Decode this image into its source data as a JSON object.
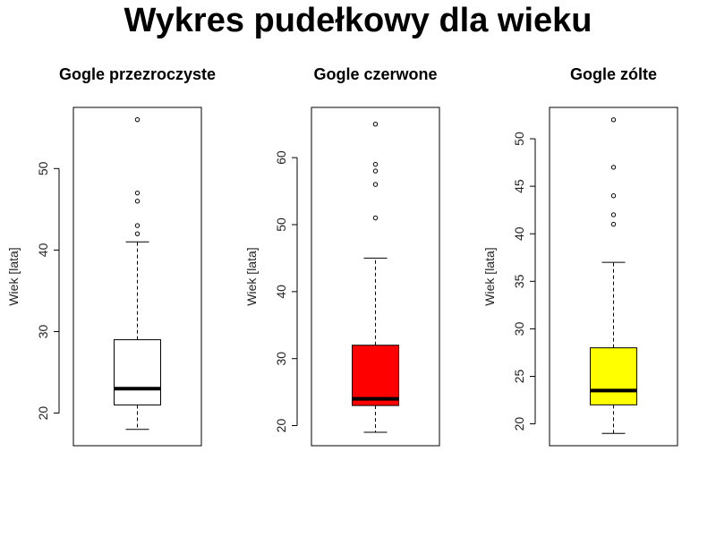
{
  "title": "Wykres pudełkowy dla wieku",
  "chart_data": [
    {
      "type": "boxplot",
      "title": "Gogle przezroczyste",
      "ylabel": "Wiek [lata]",
      "ylim": [
        16.0,
        57.5
      ],
      "yticks": [
        20,
        30,
        40,
        50
      ],
      "fill": "#ffffff",
      "stats": {
        "min": 18,
        "q1": 21,
        "median": 23,
        "q3": 29,
        "max": 41
      },
      "outliers": [
        42,
        43,
        46,
        47,
        56
      ]
    },
    {
      "type": "boxplot",
      "title": "Gogle czerwone",
      "ylabel": "Wiek [lata]",
      "ylim": [
        17.0,
        67.5
      ],
      "yticks": [
        20,
        30,
        40,
        50,
        60
      ],
      "fill": "#ff0000",
      "stats": {
        "min": 19,
        "q1": 23,
        "median": 24,
        "q3": 32,
        "max": 45
      },
      "outliers": [
        51,
        56,
        58,
        59,
        65
      ]
    },
    {
      "type": "boxplot",
      "title": "Gogle zólte",
      "ylabel": "Wiek [lata]",
      "ylim": [
        17.7,
        53.3
      ],
      "yticks": [
        20,
        25,
        30,
        35,
        40,
        45,
        50
      ],
      "fill": "#ffff00",
      "stats": {
        "min": 19,
        "q1": 22,
        "median": 23.5,
        "q3": 28,
        "max": 37
      },
      "outliers": [
        41,
        42,
        44,
        47,
        52
      ]
    }
  ]
}
